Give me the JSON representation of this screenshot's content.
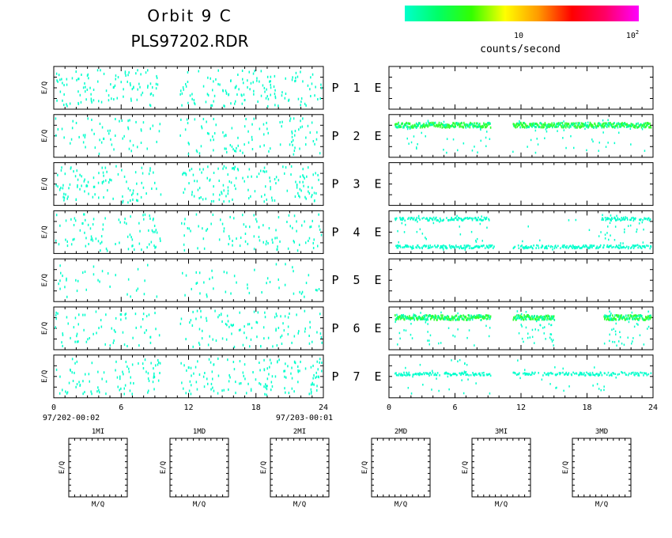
{
  "title": "Orbit 9 C",
  "subtitle": "PLS97202.RDR",
  "colorbar": {
    "colors": [
      "#00ffcc",
      "#00ff66",
      "#33ff00",
      "#ffff00",
      "#ff9900",
      "#ff0000",
      "#ff0066",
      "#ff00ff"
    ],
    "tick_10": "10",
    "tick_100_base": "10",
    "tick_100_exp": "2",
    "unit_label": "counts/second"
  },
  "panel_ylabel": "E/Q",
  "row_labels": [
    {
      "p": "P",
      "n": "1",
      "e": "E"
    },
    {
      "p": "P",
      "n": "2",
      "e": "E"
    },
    {
      "p": "P",
      "n": "3",
      "e": "E"
    },
    {
      "p": "P",
      "n": "4",
      "e": "E"
    },
    {
      "p": "P",
      "n": "5",
      "e": "E"
    },
    {
      "p": "P",
      "n": "6",
      "e": "E"
    },
    {
      "p": "P",
      "n": "7",
      "e": "E"
    }
  ],
  "x_ticks": [
    "0",
    "6",
    "12",
    "18",
    "24"
  ],
  "start_time": "97/202-00:02",
  "end_time": "97/203-00:01",
  "mq_panels": [
    {
      "title": "1MI",
      "xlabel": "M/Q",
      "ylabel": "E/Q"
    },
    {
      "title": "1MD",
      "xlabel": "M/Q",
      "ylabel": "E/Q"
    },
    {
      "title": "2MI",
      "xlabel": "M/Q",
      "ylabel": "E/Q"
    },
    {
      "title": "2MD",
      "xlabel": "M/Q",
      "ylabel": "E/Q"
    },
    {
      "title": "3MI",
      "xlabel": "M/Q",
      "ylabel": "E/Q"
    },
    {
      "title": "3MD",
      "xlabel": "M/Q",
      "ylabel": "E/Q"
    }
  ],
  "chart_data": {
    "type": "heatmap",
    "x_range": [
      0,
      24
    ],
    "x_unit": "hours",
    "gaps": [
      [
        9.5,
        11.2
      ]
    ],
    "left_panels": [
      {
        "density": 0.22
      },
      {
        "density": 0.14
      },
      {
        "density": 0.22
      },
      {
        "density": 0.16
      },
      {
        "density": 0.07
      },
      {
        "density": 0.15
      },
      {
        "density": 0.2
      }
    ],
    "right_panels": [
      {
        "bands": []
      },
      {
        "bands": [
          {
            "y": 0.75,
            "xmin": 0.5,
            "xmax": 9.2,
            "intensity": "high"
          },
          {
            "y": 0.75,
            "xmin": 11.2,
            "xmax": 23.8,
            "intensity": "high"
          }
        ]
      },
      {
        "bands": []
      },
      {
        "bands": [
          {
            "y": 0.8,
            "xmin": 0.5,
            "xmax": 9.2,
            "intensity": "low"
          },
          {
            "y": 0.8,
            "xmin": 19.2,
            "xmax": 23.8,
            "intensity": "low"
          },
          {
            "y": 0.15,
            "xmin": 0.5,
            "xmax": 23.8,
            "intensity": "low"
          }
        ]
      },
      {
        "bands": []
      },
      {
        "bands": [
          {
            "y": 0.75,
            "xmin": 0.5,
            "xmax": 9.2,
            "intensity": "high"
          },
          {
            "y": 0.75,
            "xmin": 11.2,
            "xmax": 15.0,
            "intensity": "high"
          },
          {
            "y": 0.75,
            "xmin": 19.5,
            "xmax": 23.8,
            "intensity": "high"
          }
        ]
      },
      {
        "bands": [
          {
            "y": 0.55,
            "xmin": 0.5,
            "xmax": 9.2,
            "intensity": "low"
          },
          {
            "y": 0.55,
            "xmin": 11.2,
            "xmax": 23.8,
            "intensity": "low"
          }
        ]
      }
    ]
  }
}
